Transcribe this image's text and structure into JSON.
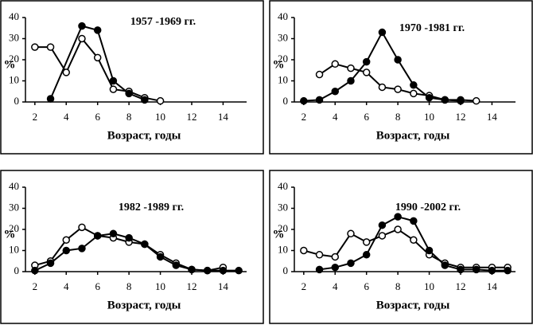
{
  "chart_data": [
    {
      "type": "line",
      "title": "1957 -1969 гг.",
      "xlabel": "Возраст, годы",
      "ylabel": "%",
      "xlim": [
        1.4,
        15.5
      ],
      "ylim": [
        0,
        40
      ],
      "xticks": [
        2,
        4,
        6,
        8,
        10,
        12,
        14
      ],
      "yticks": [
        0,
        10,
        20,
        30,
        40
      ],
      "grid": false,
      "series": [
        {
          "color": "#ffffff",
          "x": [
            2,
            3,
            4,
            5,
            6,
            7,
            8,
            9,
            10
          ],
          "values": [
            26,
            26,
            14,
            30,
            21,
            6,
            5,
            2,
            0.5
          ]
        },
        {
          "color": "#000000",
          "x": [
            3,
            5,
            6,
            7,
            8,
            9
          ],
          "values": [
            1.5,
            36,
            34,
            10,
            4,
            1
          ]
        }
      ]
    },
    {
      "type": "line",
      "title": "1970 -1981 гг.",
      "xlabel": "Возраст, годы",
      "ylabel": "%",
      "xlim": [
        1.4,
        15.5
      ],
      "ylim": [
        0,
        40
      ],
      "xticks": [
        2,
        4,
        6,
        8,
        10,
        12,
        14
      ],
      "yticks": [
        0,
        10,
        20,
        30,
        40
      ],
      "grid": false,
      "series": [
        {
          "color": "#ffffff",
          "x": [
            3,
            4,
            5,
            6,
            7,
            8,
            9,
            10,
            11,
            12,
            13
          ],
          "values": [
            13,
            18,
            16,
            14,
            7,
            6,
            4,
            3,
            1,
            1,
            0.5
          ]
        },
        {
          "color": "#000000",
          "x": [
            2,
            3,
            4,
            5,
            6,
            7,
            8,
            9,
            10,
            11,
            12
          ],
          "values": [
            0.5,
            1,
            5,
            10,
            19,
            33,
            20,
            8,
            2,
            1,
            0.5
          ]
        }
      ]
    },
    {
      "type": "line",
      "title": "1982 -1989 гг.",
      "xlabel": "Возраст, годы",
      "ylabel": "%",
      "xlim": [
        1.4,
        15.5
      ],
      "ylim": [
        0,
        40
      ],
      "xticks": [
        2,
        4,
        6,
        8,
        10,
        12,
        14
      ],
      "yticks": [
        0,
        10,
        20,
        30,
        40
      ],
      "grid": false,
      "series": [
        {
          "color": "#ffffff",
          "x": [
            2,
            3,
            4,
            5,
            6,
            7,
            8,
            9,
            10,
            11,
            12,
            13,
            14
          ],
          "values": [
            3,
            5,
            15,
            21,
            17,
            16,
            14,
            13,
            8,
            4,
            1,
            0.5,
            2
          ]
        },
        {
          "color": "#000000",
          "x": [
            2,
            3,
            4,
            5,
            6,
            7,
            8,
            9,
            10,
            11,
            12,
            13,
            14,
            15
          ],
          "values": [
            0.5,
            4,
            10,
            11,
            17,
            18,
            16,
            13,
            7,
            3,
            1,
            0.5,
            0.5,
            0.5
          ]
        }
      ]
    },
    {
      "type": "line",
      "title": "1990 -2002 гг.",
      "xlabel": "Возраст, годы",
      "ylabel": "%",
      "xlim": [
        1.4,
        15.5
      ],
      "ylim": [
        0,
        40
      ],
      "xticks": [
        2,
        4,
        6,
        8,
        10,
        12,
        14
      ],
      "yticks": [
        0,
        10,
        20,
        30,
        40
      ],
      "grid": false,
      "series": [
        {
          "color": "#ffffff",
          "x": [
            2,
            3,
            4,
            5,
            6,
            7,
            8,
            9,
            10,
            11,
            12,
            13,
            14,
            15
          ],
          "values": [
            10,
            8,
            7,
            18,
            14,
            17,
            20,
            15,
            8,
            4,
            2,
            2,
            2,
            2
          ]
        },
        {
          "color": "#000000",
          "x": [
            3,
            4,
            5,
            6,
            7,
            8,
            9,
            10,
            11,
            12,
            13,
            14,
            15
          ],
          "values": [
            1,
            2,
            4,
            8,
            22,
            26,
            24,
            10,
            3,
            1,
            1,
            0.5,
            0.5
          ]
        }
      ]
    }
  ]
}
